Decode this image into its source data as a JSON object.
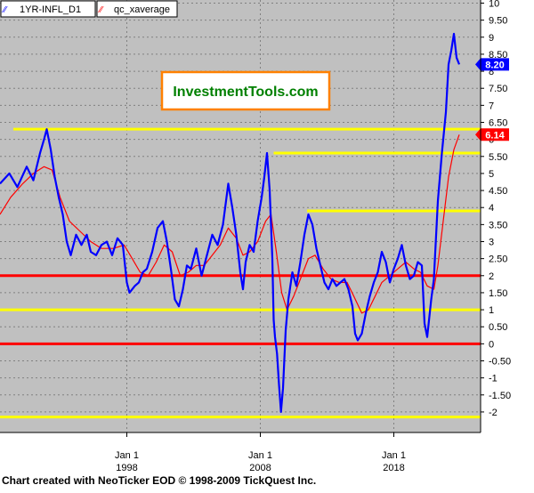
{
  "footer": "Chart created with NeoTicker EOD © 1998-2009 TickQuest Inc.",
  "watermark": "InvestmentTools.com",
  "chart_data": {
    "type": "line",
    "legend": [
      {
        "name": "1YR-INFL_D1",
        "color": "#0000ff"
      },
      {
        "name": "qc_xaverage",
        "color": "#ff0000"
      }
    ],
    "legend_placement": "top-left",
    "ylim": [
      -2.25,
      10
    ],
    "yticks": [
      "-2",
      "-1.50",
      "-1",
      "-0.50",
      "0",
      "0.50",
      "1",
      "1.50",
      "2",
      "2.50",
      "3",
      "3.50",
      "4",
      "4.50",
      "5",
      "5.50",
      "6",
      "6.50",
      "7",
      "7.50",
      "8",
      "8.50",
      "9",
      "9.50",
      "10"
    ],
    "xlim": [
      1988.5,
      2024.5
    ],
    "xticks": [
      {
        "x": 1998,
        "month": "Jan 1",
        "year": "1998"
      },
      {
        "x": 2008,
        "month": "Jan 1",
        "year": "2008"
      },
      {
        "x": 2018,
        "month": "Jan 1",
        "year": "2018"
      }
    ],
    "grid": true,
    "last_value_markers": [
      {
        "label": "8.20",
        "value": 8.2,
        "color": "#0000ff"
      },
      {
        "label": "6.14",
        "value": 6.14,
        "color": "#ff0000"
      }
    ],
    "horizontal_lines": [
      {
        "y": 6.3,
        "x0": 1989.5,
        "x1": 2024.5,
        "color": "#ffff00"
      },
      {
        "y": 5.6,
        "x0": 2009.0,
        "x1": 2024.5,
        "color": "#ffff00"
      },
      {
        "y": 3.9,
        "x0": 2011.5,
        "x1": 2024.5,
        "color": "#ffff00"
      },
      {
        "y": 2.0,
        "x0": 1988.5,
        "x1": 2024.5,
        "color": "#ff0000"
      },
      {
        "y": 1.0,
        "x0": 1988.5,
        "x1": 2024.5,
        "color": "#ffff00"
      },
      {
        "y": 0.0,
        "x0": 1988.5,
        "x1": 2024.5,
        "color": "#ff0000"
      },
      {
        "y": -2.15,
        "x0": 1988.5,
        "x1": 2024.5,
        "color": "#ffff00"
      }
    ],
    "series": [
      {
        "name": "1YR-INFL_D1",
        "color": "#0000ff",
        "points": [
          [
            1988.5,
            4.7
          ],
          [
            1989.2,
            5.0
          ],
          [
            1989.8,
            4.6
          ],
          [
            1990.5,
            5.2
          ],
          [
            1991.0,
            4.8
          ],
          [
            1991.5,
            5.6
          ],
          [
            1991.8,
            6.0
          ],
          [
            1992.0,
            6.3
          ],
          [
            1992.3,
            5.7
          ],
          [
            1992.6,
            4.9
          ],
          [
            1992.9,
            4.3
          ],
          [
            1993.2,
            3.8
          ],
          [
            1993.5,
            3.0
          ],
          [
            1993.8,
            2.6
          ],
          [
            1994.2,
            3.2
          ],
          [
            1994.6,
            2.9
          ],
          [
            1995.0,
            3.2
          ],
          [
            1995.3,
            2.7
          ],
          [
            1995.7,
            2.6
          ],
          [
            1996.1,
            2.9
          ],
          [
            1996.5,
            3.0
          ],
          [
            1996.9,
            2.6
          ],
          [
            1997.3,
            3.1
          ],
          [
            1997.7,
            2.9
          ],
          [
            1998.0,
            1.8
          ],
          [
            1998.2,
            1.5
          ],
          [
            1998.6,
            1.7
          ],
          [
            1998.9,
            1.8
          ],
          [
            1999.2,
            2.1
          ],
          [
            1999.5,
            2.2
          ],
          [
            1999.9,
            2.7
          ],
          [
            2000.3,
            3.4
          ],
          [
            2000.7,
            3.6
          ],
          [
            2001.0,
            3.0
          ],
          [
            2001.3,
            2.2
          ],
          [
            2001.6,
            1.3
          ],
          [
            2001.9,
            1.1
          ],
          [
            2002.2,
            1.6
          ],
          [
            2002.5,
            2.3
          ],
          [
            2002.8,
            2.2
          ],
          [
            2003.2,
            2.8
          ],
          [
            2003.6,
            2.0
          ],
          [
            2004.0,
            2.6
          ],
          [
            2004.4,
            3.2
          ],
          [
            2004.8,
            2.9
          ],
          [
            2005.2,
            3.5
          ],
          [
            2005.6,
            4.7
          ],
          [
            2005.9,
            4.0
          ],
          [
            2006.2,
            3.2
          ],
          [
            2006.5,
            2.1
          ],
          [
            2006.7,
            1.6
          ],
          [
            2006.9,
            2.4
          ],
          [
            2007.2,
            2.9
          ],
          [
            2007.5,
            2.7
          ],
          [
            2007.8,
            3.6
          ],
          [
            2008.1,
            4.3
          ],
          [
            2008.3,
            4.9
          ],
          [
            2008.5,
            5.6
          ],
          [
            2008.7,
            4.5
          ],
          [
            2008.9,
            2.5
          ],
          [
            2009.0,
            0.7
          ],
          [
            2009.1,
            0.2
          ],
          [
            2009.25,
            -0.3
          ],
          [
            2009.4,
            -1.2
          ],
          [
            2009.55,
            -2.0
          ],
          [
            2009.7,
            -1.3
          ],
          [
            2009.9,
            0.4
          ],
          [
            2010.1,
            1.3
          ],
          [
            2010.4,
            2.1
          ],
          [
            2010.7,
            1.7
          ],
          [
            2011.0,
            2.4
          ],
          [
            2011.3,
            3.2
          ],
          [
            2011.6,
            3.8
          ],
          [
            2011.9,
            3.5
          ],
          [
            2012.2,
            2.8
          ],
          [
            2012.5,
            2.3
          ],
          [
            2012.8,
            1.8
          ],
          [
            2013.1,
            1.6
          ],
          [
            2013.4,
            1.9
          ],
          [
            2013.7,
            1.7
          ],
          [
            2014.0,
            1.8
          ],
          [
            2014.3,
            1.9
          ],
          [
            2014.6,
            1.6
          ],
          [
            2014.9,
            1.1
          ],
          [
            2015.1,
            0.3
          ],
          [
            2015.3,
            0.1
          ],
          [
            2015.6,
            0.3
          ],
          [
            2015.9,
            0.9
          ],
          [
            2016.2,
            1.4
          ],
          [
            2016.5,
            1.8
          ],
          [
            2016.8,
            2.1
          ],
          [
            2017.1,
            2.7
          ],
          [
            2017.4,
            2.4
          ],
          [
            2017.7,
            1.8
          ],
          [
            2018.0,
            2.2
          ],
          [
            2018.3,
            2.5
          ],
          [
            2018.6,
            2.9
          ],
          [
            2018.9,
            2.3
          ],
          [
            2019.2,
            1.9
          ],
          [
            2019.5,
            2.0
          ],
          [
            2019.8,
            2.4
          ],
          [
            2020.1,
            2.3
          ],
          [
            2020.3,
            0.6
          ],
          [
            2020.5,
            0.2
          ],
          [
            2020.8,
            1.3
          ],
          [
            2021.0,
            1.9
          ],
          [
            2021.3,
            4.2
          ],
          [
            2021.6,
            5.6
          ],
          [
            2021.9,
            6.8
          ],
          [
            2022.1,
            8.2
          ],
          [
            2022.3,
            8.6
          ],
          [
            2022.5,
            9.1
          ],
          [
            2022.7,
            8.4
          ],
          [
            2022.9,
            8.2
          ]
        ]
      },
      {
        "name": "qc_xaverage",
        "color": "#ff0000",
        "points": [
          [
            1988.5,
            3.8
          ],
          [
            1989.3,
            4.3
          ],
          [
            1990.2,
            4.7
          ],
          [
            1991.0,
            5.0
          ],
          [
            1991.8,
            5.2
          ],
          [
            1992.4,
            5.1
          ],
          [
            1993.0,
            4.3
          ],
          [
            1993.7,
            3.6
          ],
          [
            1994.5,
            3.3
          ],
          [
            1995.3,
            3.0
          ],
          [
            1996.1,
            2.8
          ],
          [
            1997.0,
            2.8
          ],
          [
            1997.8,
            2.9
          ],
          [
            1998.4,
            2.5
          ],
          [
            1999.0,
            2.1
          ],
          [
            1999.6,
            2.0
          ],
          [
            2000.2,
            2.4
          ],
          [
            2000.8,
            2.9
          ],
          [
            2001.4,
            2.7
          ],
          [
            2002.0,
            2.0
          ],
          [
            2002.6,
            2.1
          ],
          [
            2003.2,
            2.3
          ],
          [
            2003.8,
            2.3
          ],
          [
            2004.4,
            2.6
          ],
          [
            2005.0,
            2.9
          ],
          [
            2005.6,
            3.4
          ],
          [
            2006.2,
            3.1
          ],
          [
            2006.7,
            2.6
          ],
          [
            2007.2,
            2.7
          ],
          [
            2007.8,
            3.0
          ],
          [
            2008.4,
            3.6
          ],
          [
            2008.8,
            3.8
          ],
          [
            2009.2,
            2.7
          ],
          [
            2009.6,
            1.5
          ],
          [
            2010.0,
            1.0
          ],
          [
            2010.5,
            1.4
          ],
          [
            2011.0,
            1.9
          ],
          [
            2011.6,
            2.5
          ],
          [
            2012.1,
            2.6
          ],
          [
            2012.7,
            2.2
          ],
          [
            2013.3,
            1.9
          ],
          [
            2013.9,
            1.8
          ],
          [
            2014.5,
            1.8
          ],
          [
            2015.0,
            1.4
          ],
          [
            2015.6,
            0.9
          ],
          [
            2016.1,
            1.0
          ],
          [
            2016.6,
            1.4
          ],
          [
            2017.1,
            1.8
          ],
          [
            2017.7,
            2.0
          ],
          [
            2018.3,
            2.2
          ],
          [
            2018.9,
            2.4
          ],
          [
            2019.5,
            2.2
          ],
          [
            2020.0,
            2.1
          ],
          [
            2020.5,
            1.7
          ],
          [
            2021.0,
            1.6
          ],
          [
            2021.3,
            2.3
          ],
          [
            2021.7,
            3.6
          ],
          [
            2022.1,
            4.9
          ],
          [
            2022.5,
            5.7
          ],
          [
            2022.9,
            6.14
          ]
        ]
      }
    ]
  }
}
